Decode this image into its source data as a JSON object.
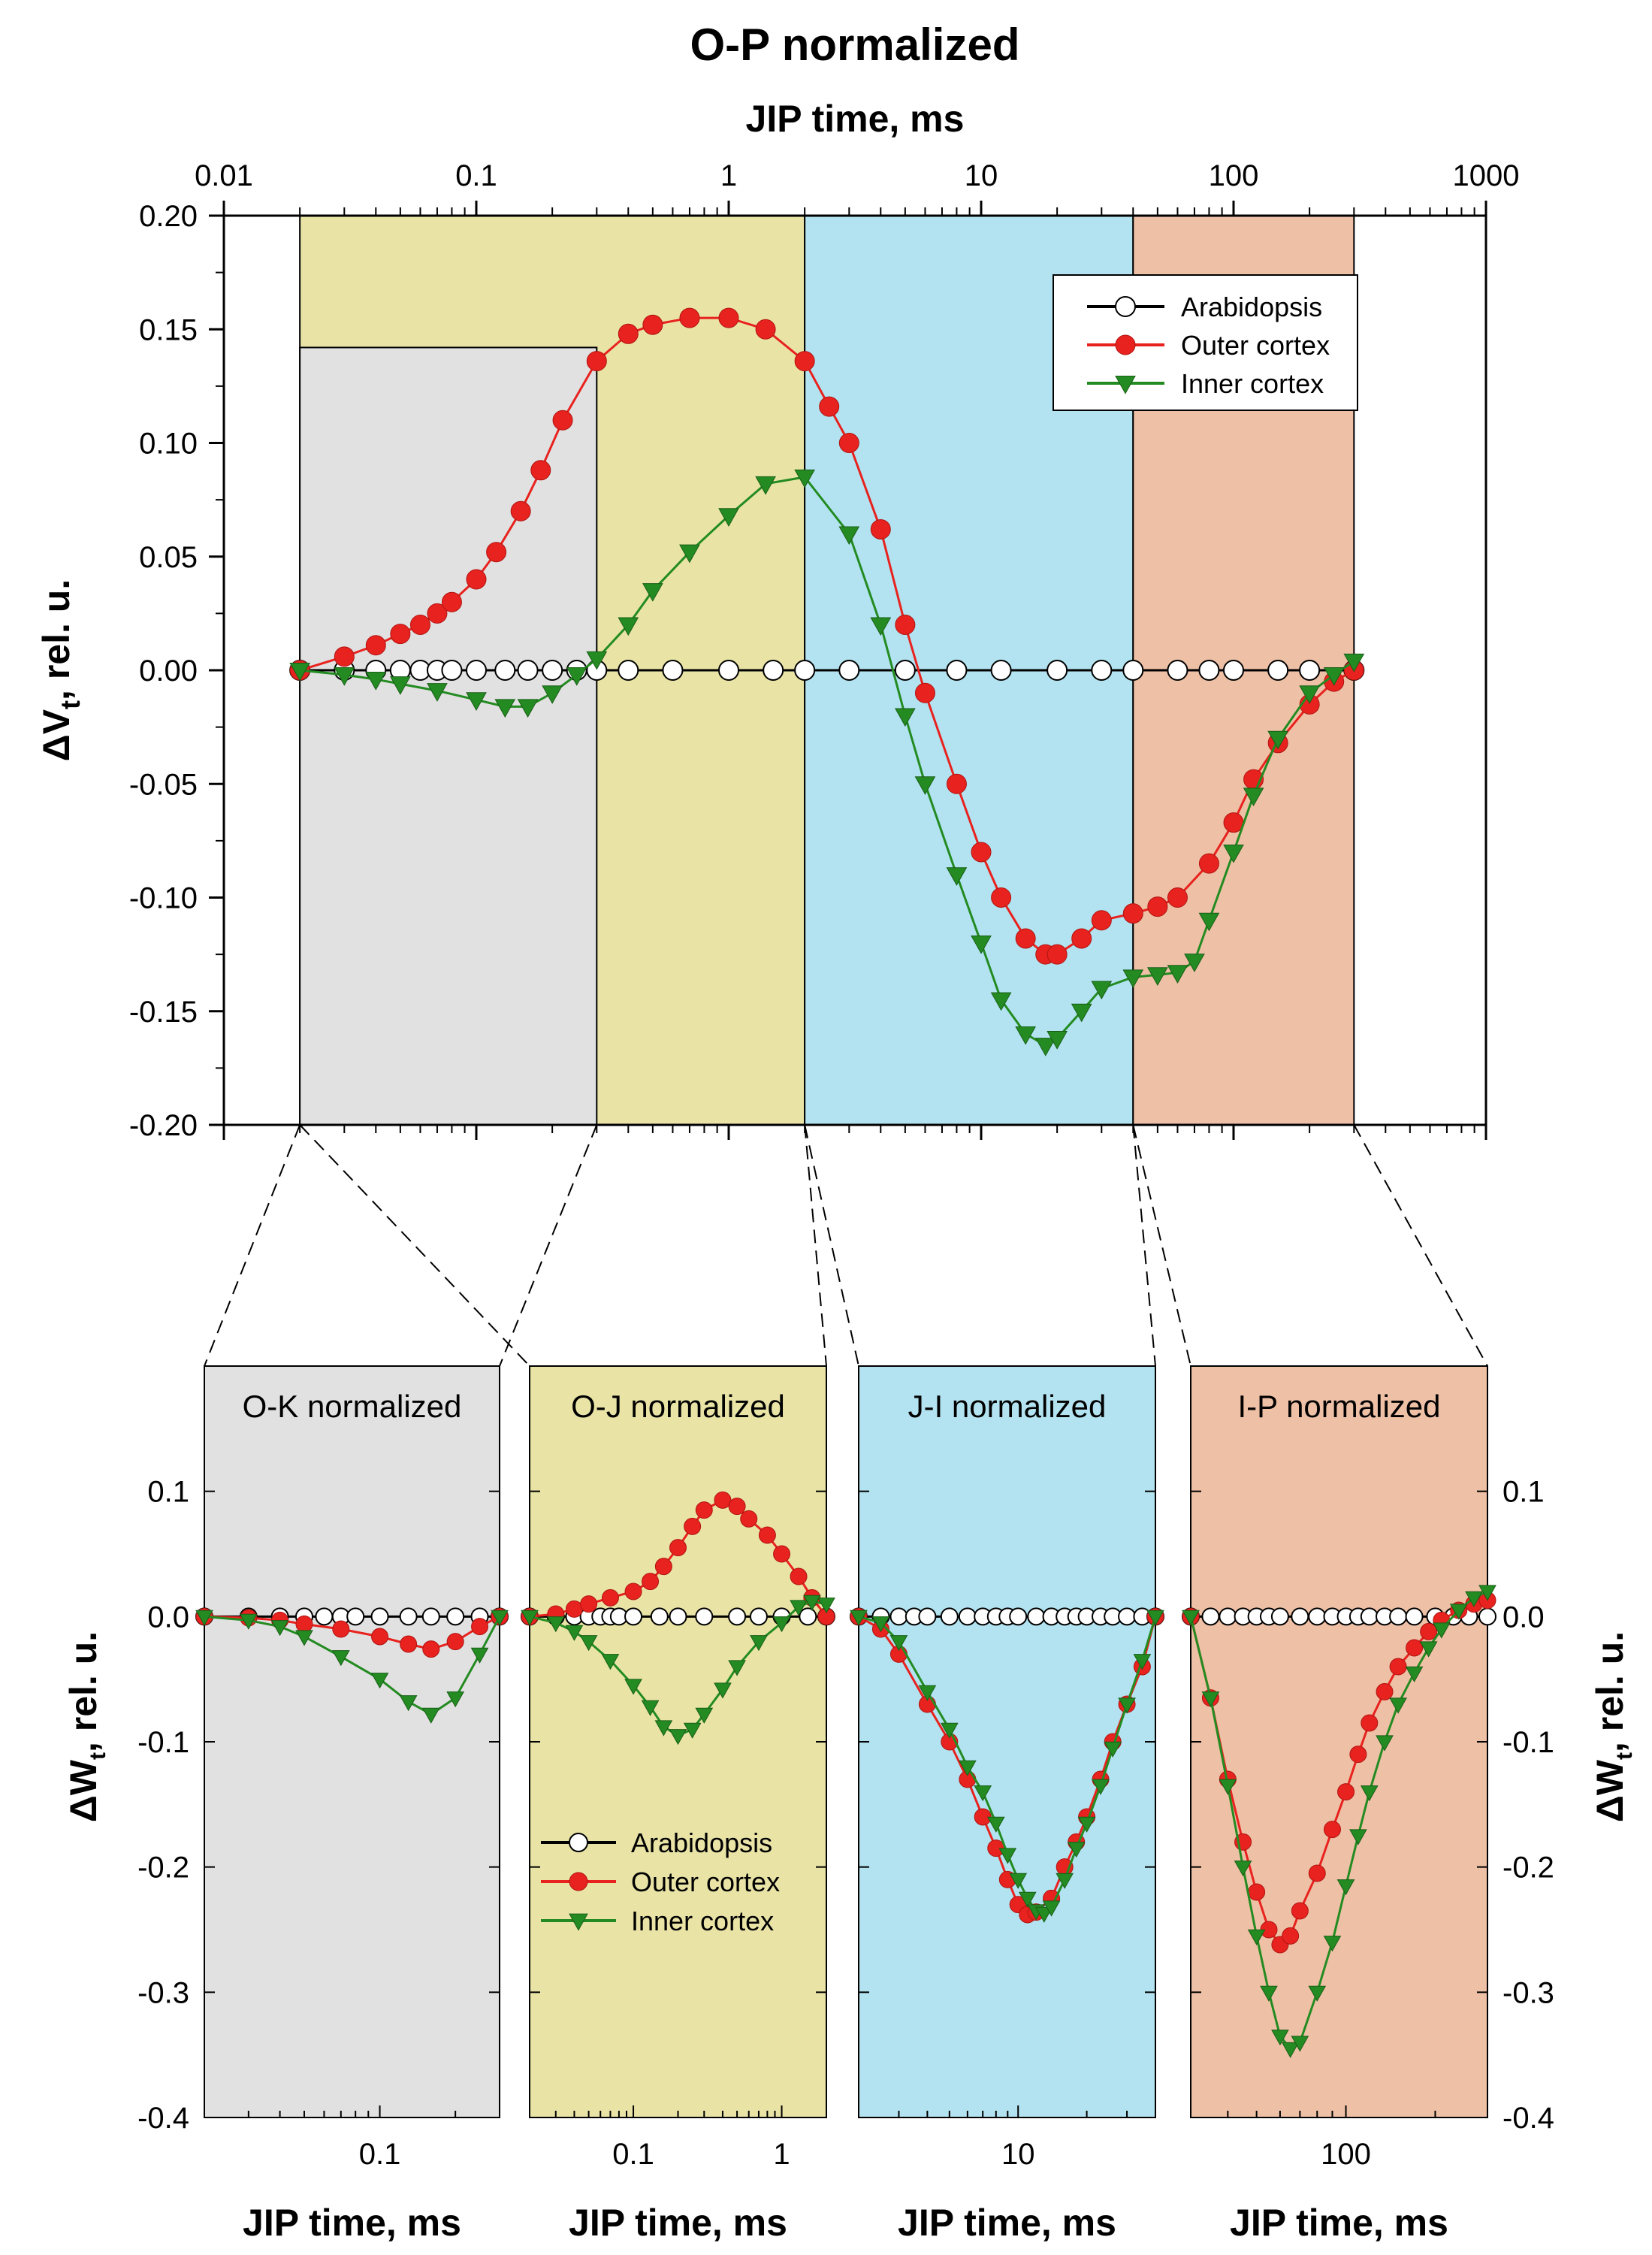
{
  "chart_data": [
    {
      "id": "main",
      "type": "line",
      "title": "O-P normalized",
      "xlabel": "JIP time, ms",
      "ylabel": "ΔV",
      "ylabel_sub": "t",
      "ylabel_suffix": ", rel. u.",
      "xscale": "log",
      "xlim": [
        0.01,
        1000
      ],
      "ylim": [
        -0.2,
        0.2
      ],
      "x_ticks": [
        0.01,
        0.1,
        1,
        10,
        100,
        1000
      ],
      "x_tick_labels": [
        "0.01",
        "0.1",
        "1",
        "10",
        "100",
        "1000"
      ],
      "y_ticks": [
        -0.2,
        -0.15,
        -0.1,
        -0.05,
        0,
        0.05,
        0.1,
        0.15,
        0.2
      ],
      "y_tick_labels": [
        "-0.20",
        "-0.15",
        "-0.10",
        "-0.05",
        "0.00",
        "0.05",
        "0.10",
        "0.15",
        "0.20"
      ],
      "legend_position": "top-right",
      "regions": [
        {
          "name": "O-K",
          "x": [
            0.02,
            0.3
          ],
          "y_top": 0.142,
          "color": "#e1e1e1"
        },
        {
          "name": "O-J",
          "x": [
            0.02,
            2
          ],
          "y_top": 0.2,
          "color": "#e9e4a6"
        },
        {
          "name": "J-I",
          "x": [
            2,
            40
          ],
          "y_top": 0.2,
          "color": "#b3e3f1"
        },
        {
          "name": "I-P",
          "x": [
            40,
            300
          ],
          "y_top": 0.2,
          "color": "#eec1a6"
        }
      ],
      "series": [
        {
          "name": "Arabidopsis",
          "marker": "circle-open",
          "color": "#000000",
          "x": [
            0.02,
            0.03,
            0.04,
            0.05,
            0.06,
            0.07,
            0.08,
            0.1,
            0.13,
            0.16,
            0.2,
            0.25,
            0.3,
            0.4,
            0.6,
            1,
            1.5,
            2,
            3,
            5,
            8,
            12,
            20,
            30,
            40,
            60,
            80,
            100,
            150,
            200,
            300
          ],
          "y": [
            0,
            0,
            0,
            0,
            0,
            0,
            0,
            0,
            0,
            0,
            0,
            0,
            0,
            0,
            0,
            0,
            0,
            0,
            0,
            0,
            0,
            0,
            0,
            0,
            0,
            0,
            0,
            0,
            0,
            0,
            0
          ]
        },
        {
          "name": "Outer cortex",
          "marker": "circle",
          "color": "#e8221e",
          "x": [
            0.02,
            0.03,
            0.04,
            0.05,
            0.06,
            0.07,
            0.08,
            0.1,
            0.12,
            0.15,
            0.18,
            0.22,
            0.3,
            0.4,
            0.5,
            0.7,
            1,
            1.4,
            2,
            2.5,
            3,
            4,
            5,
            6,
            8,
            10,
            12,
            15,
            18,
            20,
            25,
            30,
            40,
            50,
            60,
            80,
            100,
            120,
            150,
            200,
            250,
            300
          ],
          "y": [
            0,
            0.006,
            0.011,
            0.016,
            0.02,
            0.025,
            0.03,
            0.04,
            0.052,
            0.07,
            0.088,
            0.11,
            0.136,
            0.148,
            0.152,
            0.155,
            0.155,
            0.15,
            0.136,
            0.116,
            0.1,
            0.062,
            0.02,
            -0.01,
            -0.05,
            -0.08,
            -0.1,
            -0.118,
            -0.125,
            -0.125,
            -0.118,
            -0.11,
            -0.107,
            -0.104,
            -0.1,
            -0.085,
            -0.067,
            -0.048,
            -0.032,
            -0.015,
            -0.005,
            0
          ]
        },
        {
          "name": "Inner cortex",
          "marker": "triangle-down",
          "color": "#238b21",
          "x": [
            0.02,
            0.03,
            0.04,
            0.05,
            0.07,
            0.1,
            0.13,
            0.16,
            0.2,
            0.25,
            0.3,
            0.4,
            0.5,
            0.7,
            1,
            1.4,
            2,
            3,
            4,
            5,
            6,
            8,
            10,
            12,
            15,
            18,
            20,
            25,
            30,
            40,
            50,
            60,
            70,
            80,
            100,
            120,
            150,
            200,
            250,
            300
          ],
          "y": [
            0,
            -0.002,
            -0.004,
            -0.006,
            -0.009,
            -0.013,
            -0.016,
            -0.016,
            -0.01,
            -0.002,
            0.005,
            0.02,
            0.035,
            0.052,
            0.068,
            0.082,
            0.085,
            0.06,
            0.02,
            -0.02,
            -0.05,
            -0.09,
            -0.12,
            -0.145,
            -0.16,
            -0.165,
            -0.162,
            -0.15,
            -0.14,
            -0.135,
            -0.134,
            -0.133,
            -0.128,
            -0.11,
            -0.08,
            -0.055,
            -0.03,
            -0.01,
            -0.002,
            0.004
          ]
        }
      ]
    },
    {
      "id": "ok",
      "type": "line",
      "title": "O-K normalized",
      "xlabel": "JIP time, ms",
      "ylabel": "ΔW",
      "ylabel_sub": "t",
      "ylabel_suffix": ", rel. u.",
      "xscale": "log",
      "xlim": [
        0.02,
        0.3
      ],
      "ylim": [
        -0.4,
        0.2
      ],
      "x_ticks": [
        0.1
      ],
      "x_tick_labels": [
        "0.1"
      ],
      "y_ticks": [
        -0.4,
        -0.3,
        -0.2,
        -0.1,
        0,
        0.1
      ],
      "y_tick_labels": [
        "-0.4",
        "-0.3",
        "-0.2",
        "-0.1",
        "0.0",
        "0.1"
      ],
      "background": "#e1e1e1",
      "series": [
        {
          "name": "Arabidopsis",
          "marker": "circle-open",
          "color": "#000000",
          "x": [
            0.02,
            0.03,
            0.04,
            0.05,
            0.06,
            0.07,
            0.08,
            0.1,
            0.13,
            0.16,
            0.2,
            0.25,
            0.3
          ],
          "y": [
            0,
            0,
            0,
            0,
            0,
            0,
            0,
            0,
            0,
            0,
            0,
            0,
            0
          ]
        },
        {
          "name": "Outer cortex",
          "marker": "circle",
          "color": "#e8221e",
          "x": [
            0.02,
            0.03,
            0.04,
            0.05,
            0.07,
            0.1,
            0.13,
            0.16,
            0.2,
            0.25,
            0.3
          ],
          "y": [
            0,
            -0.001,
            -0.003,
            -0.006,
            -0.01,
            -0.016,
            -0.022,
            -0.026,
            -0.02,
            -0.008,
            0
          ]
        },
        {
          "name": "Inner cortex",
          "marker": "triangle-down",
          "color": "#238b21",
          "x": [
            0.02,
            0.03,
            0.04,
            0.05,
            0.07,
            0.1,
            0.13,
            0.16,
            0.2,
            0.25,
            0.3
          ],
          "y": [
            0,
            -0.003,
            -0.008,
            -0.016,
            -0.032,
            -0.05,
            -0.068,
            -0.078,
            -0.065,
            -0.03,
            0
          ]
        }
      ]
    },
    {
      "id": "oj",
      "type": "line",
      "title": "O-J normalized",
      "xlabel": "JIP time, ms",
      "xscale": "log",
      "xlim": [
        0.02,
        2
      ],
      "ylim": [
        -0.4,
        0.2
      ],
      "x_ticks": [
        0.1,
        1
      ],
      "x_tick_labels": [
        "0.1",
        "1"
      ],
      "y_ticks": [
        -0.4,
        -0.3,
        -0.2,
        -0.1,
        0,
        0.1
      ],
      "background": "#e9e4a6",
      "legend_position": "bottom-left",
      "series": [
        {
          "name": "Arabidopsis",
          "marker": "circle-open",
          "color": "#000000",
          "x": [
            0.02,
            0.03,
            0.04,
            0.05,
            0.06,
            0.07,
            0.08,
            0.1,
            0.15,
            0.2,
            0.3,
            0.5,
            0.7,
            1,
            1.5,
            2
          ],
          "y": [
            0,
            0,
            0,
            0,
            0,
            0,
            0,
            0,
            0,
            0,
            0,
            0,
            0,
            0,
            0,
            0
          ]
        },
        {
          "name": "Outer cortex",
          "marker": "circle",
          "color": "#e8221e",
          "x": [
            0.02,
            0.03,
            0.04,
            0.05,
            0.07,
            0.1,
            0.13,
            0.16,
            0.2,
            0.25,
            0.3,
            0.4,
            0.5,
            0.6,
            0.8,
            1,
            1.3,
            1.6,
            2
          ],
          "y": [
            0,
            0.002,
            0.006,
            0.01,
            0.015,
            0.02,
            0.028,
            0.04,
            0.055,
            0.072,
            0.085,
            0.093,
            0.088,
            0.078,
            0.065,
            0.05,
            0.032,
            0.015,
            0
          ]
        },
        {
          "name": "Inner cortex",
          "marker": "triangle-down",
          "color": "#238b21",
          "x": [
            0.02,
            0.03,
            0.04,
            0.05,
            0.07,
            0.1,
            0.13,
            0.16,
            0.2,
            0.25,
            0.3,
            0.4,
            0.5,
            0.7,
            1,
            1.3,
            1.6,
            2
          ],
          "y": [
            0,
            -0.005,
            -0.012,
            -0.02,
            -0.035,
            -0.055,
            -0.072,
            -0.088,
            -0.095,
            -0.09,
            -0.078,
            -0.058,
            -0.04,
            -0.02,
            -0.005,
            0.008,
            0.012,
            0.01
          ]
        }
      ]
    },
    {
      "id": "ji",
      "type": "line",
      "title": "J-I normalized",
      "xlabel": "JIP time, ms",
      "xscale": "log",
      "xlim": [
        2,
        40
      ],
      "ylim": [
        -0.4,
        0.2
      ],
      "x_ticks": [
        10
      ],
      "x_tick_labels": [
        "10"
      ],
      "y_ticks": [
        -0.4,
        -0.3,
        -0.2,
        -0.1,
        0,
        0.1
      ],
      "background": "#b3e3f1",
      "series": [
        {
          "name": "Arabidopsis",
          "marker": "circle-open",
          "color": "#000000",
          "x": [
            2,
            2.5,
            3,
            3.5,
            4,
            5,
            6,
            7,
            8,
            9,
            10,
            12,
            14,
            16,
            18,
            20,
            23,
            26,
            30,
            35,
            40
          ],
          "y": [
            0,
            0,
            0,
            0,
            0,
            0,
            0,
            0,
            0,
            0,
            0,
            0,
            0,
            0,
            0,
            0,
            0,
            0,
            0,
            0,
            0
          ]
        },
        {
          "name": "Outer cortex",
          "marker": "circle",
          "color": "#e8221e",
          "x": [
            2,
            2.5,
            3,
            4,
            5,
            6,
            7,
            8,
            9,
            10,
            11,
            12,
            14,
            16,
            18,
            20,
            23,
            26,
            30,
            35,
            40
          ],
          "y": [
            0,
            -0.01,
            -0.03,
            -0.07,
            -0.1,
            -0.13,
            -0.16,
            -0.185,
            -0.21,
            -0.23,
            -0.238,
            -0.236,
            -0.225,
            -0.2,
            -0.18,
            -0.16,
            -0.13,
            -0.1,
            -0.07,
            -0.04,
            0
          ]
        },
        {
          "name": "Inner cortex",
          "marker": "triangle-down",
          "color": "#238b21",
          "x": [
            2,
            2.5,
            3,
            4,
            5,
            6,
            7,
            8,
            9,
            10,
            11,
            12,
            13,
            14,
            16,
            18,
            20,
            23,
            26,
            30,
            35,
            40
          ],
          "y": [
            0,
            -0.005,
            -0.02,
            -0.06,
            -0.09,
            -0.12,
            -0.14,
            -0.165,
            -0.19,
            -0.21,
            -0.225,
            -0.235,
            -0.237,
            -0.232,
            -0.21,
            -0.185,
            -0.165,
            -0.135,
            -0.105,
            -0.07,
            -0.035,
            0
          ]
        }
      ]
    },
    {
      "id": "ip",
      "type": "line",
      "title": "I-P normalized",
      "xlabel": "JIP time, ms",
      "ylabel": "ΔW",
      "ylabel_sub": "t",
      "ylabel_suffix": ", rel. u.",
      "xscale": "log",
      "xlim": [
        30,
        300
      ],
      "ylim": [
        -0.4,
        0.2
      ],
      "x_ticks": [
        100
      ],
      "x_tick_labels": [
        "100"
      ],
      "y_ticks": [
        -0.4,
        -0.3,
        -0.2,
        -0.1,
        0,
        0.1
      ],
      "y_tick_labels": [
        "-0.4",
        "-0.3",
        "-0.2",
        "-0.1",
        "0.0",
        "0.1"
      ],
      "background": "#eec1a6",
      "series": [
        {
          "name": "Arabidopsis",
          "marker": "circle-open",
          "color": "#000000",
          "x": [
            30,
            35,
            40,
            45,
            50,
            55,
            60,
            70,
            80,
            90,
            100,
            110,
            120,
            135,
            150,
            170,
            200,
            230,
            260,
            300
          ],
          "y": [
            0,
            0,
            0,
            0,
            0,
            0,
            0,
            0,
            0,
            0,
            0,
            0,
            0,
            0,
            0,
            0,
            0,
            0,
            0,
            0
          ]
        },
        {
          "name": "Outer cortex",
          "marker": "circle",
          "color": "#e8221e",
          "x": [
            30,
            35,
            40,
            45,
            50,
            55,
            60,
            65,
            70,
            80,
            90,
            100,
            110,
            120,
            135,
            150,
            170,
            190,
            210,
            240,
            270,
            300
          ],
          "y": [
            0,
            -0.065,
            -0.13,
            -0.18,
            -0.22,
            -0.25,
            -0.262,
            -0.255,
            -0.235,
            -0.205,
            -0.17,
            -0.14,
            -0.11,
            -0.085,
            -0.06,
            -0.04,
            -0.025,
            -0.012,
            -0.003,
            0.005,
            0.01,
            0.013
          ]
        },
        {
          "name": "Inner cortex",
          "marker": "triangle-down",
          "color": "#238b21",
          "x": [
            30,
            35,
            40,
            45,
            50,
            55,
            60,
            65,
            70,
            80,
            90,
            100,
            110,
            120,
            135,
            150,
            170,
            190,
            210,
            240,
            270,
            300
          ],
          "y": [
            0,
            -0.065,
            -0.135,
            -0.2,
            -0.255,
            -0.3,
            -0.335,
            -0.345,
            -0.34,
            -0.3,
            -0.26,
            -0.215,
            -0.175,
            -0.14,
            -0.1,
            -0.07,
            -0.045,
            -0.025,
            -0.01,
            0.005,
            0.015,
            0.02
          ]
        }
      ]
    }
  ]
}
